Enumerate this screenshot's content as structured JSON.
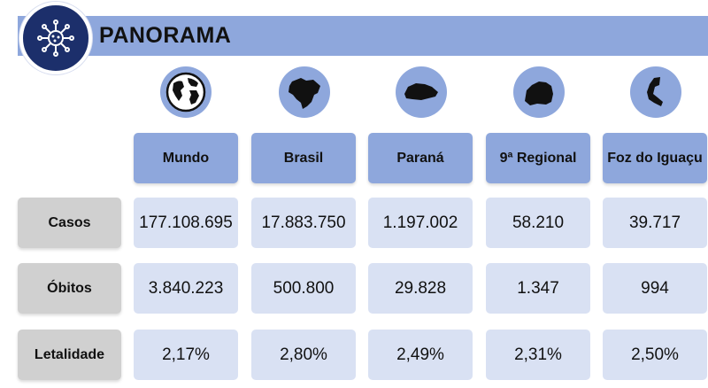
{
  "title": "PANORAMA",
  "icons": [
    "virus-icon",
    "globe-icon",
    "brazil-map-icon",
    "parana-map-icon",
    "regional-map-icon",
    "foz-map-icon"
  ],
  "colors": {
    "accent": "#8ea7dc",
    "logo_bg": "#1c2f6b",
    "cell_bg": "#d9e1f3",
    "row_header_bg": "#d0d0d0"
  },
  "columns": [
    "Mundo",
    "Brasil",
    "Paraná",
    "9ª Regional",
    "Foz do Iguaçu"
  ],
  "rows": [
    {
      "label": "Casos",
      "values": [
        "177.108.695",
        "17.883.750",
        "1.197.002",
        "58.210",
        "39.717"
      ]
    },
    {
      "label": "Óbitos",
      "values": [
        "3.840.223",
        "500.800",
        "29.828",
        "1.347",
        "994"
      ]
    },
    {
      "label": "Letalidade",
      "values": [
        "2,17%",
        "2,80%",
        "2,49%",
        "2,31%",
        "2,50%"
      ]
    }
  ]
}
